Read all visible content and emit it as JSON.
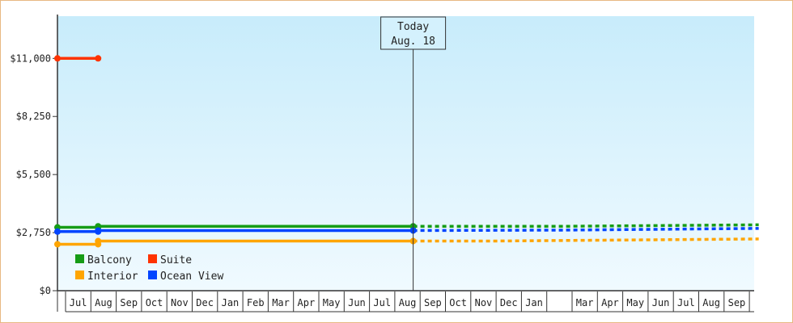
{
  "chart_data": {
    "type": "line",
    "title": "",
    "xlabel": "",
    "ylabel": "",
    "ylim": [
      0,
      13000
    ],
    "y_ticks": [
      0,
      2750,
      5500,
      8250,
      11000
    ],
    "y_tick_labels": [
      "$0",
      "$2,750",
      "$5,500",
      "$8,250",
      "$11,000"
    ],
    "x_tick_labels": [
      "Jul",
      "Aug",
      "Sep",
      "Oct",
      "Nov",
      "Dec",
      "Jan",
      "Feb",
      "Mar",
      "Apr",
      "May",
      "Jun",
      "Jul",
      "Aug",
      "Sep",
      "Oct",
      "Nov",
      "Dec",
      "Jan",
      "",
      "Mar",
      "Apr",
      "May",
      "Jun",
      "Jul",
      "Aug",
      "Sep"
    ],
    "x_range": [
      0,
      27.6
    ],
    "today_marker": {
      "x": 14.0,
      "line1": "Today",
      "line2": "Aug. 18"
    },
    "legend_placement": "bottom-left",
    "series": [
      {
        "name": "Balcony",
        "color": "#169c16",
        "points": [
          [
            0,
            3000
          ],
          [
            1.6,
            3000
          ],
          [
            1.6,
            3050
          ],
          [
            14.0,
            3050
          ]
        ],
        "markers": [
          [
            0,
            3000
          ],
          [
            1.6,
            3000
          ],
          [
            1.6,
            3050
          ],
          [
            14.0,
            3050
          ]
        ],
        "forecast": [
          [
            14.0,
            3050
          ],
          [
            20.0,
            3050
          ],
          [
            27.6,
            3120
          ]
        ]
      },
      {
        "name": "Suite",
        "color": "#ff3300",
        "points": [
          [
            0,
            11000
          ],
          [
            1.6,
            11000
          ]
        ],
        "markers": [
          [
            0,
            11000
          ],
          [
            1.6,
            11000
          ]
        ],
        "forecast": []
      },
      {
        "name": "Interior",
        "color": "#ffa500",
        "points": [
          [
            0,
            2200
          ],
          [
            1.6,
            2200
          ],
          [
            1.6,
            2350
          ],
          [
            14.0,
            2350
          ]
        ],
        "markers": [
          [
            0,
            2200
          ],
          [
            1.6,
            2200
          ],
          [
            1.6,
            2350
          ],
          [
            14.0,
            2350
          ]
        ],
        "forecast": [
          [
            14.0,
            2350
          ],
          [
            17.0,
            2350
          ],
          [
            27.6,
            2450
          ]
        ]
      },
      {
        "name": "Ocean View",
        "color": "#0044ff",
        "points": [
          [
            0,
            2800
          ],
          [
            1.6,
            2800
          ],
          [
            1.6,
            2850
          ],
          [
            14.0,
            2850
          ]
        ],
        "markers": [
          [
            0,
            2800
          ],
          [
            1.6,
            2800
          ],
          [
            1.6,
            2850
          ],
          [
            14.0,
            2850
          ]
        ],
        "forecast": [
          [
            14.0,
            2850
          ],
          [
            20.0,
            2870
          ],
          [
            27.6,
            2950
          ]
        ]
      }
    ],
    "colors": {
      "bg_top": "#c8ecfb",
      "bg_bottom": "#f0faff",
      "axis": "#333333",
      "today_line": "#333333"
    }
  }
}
